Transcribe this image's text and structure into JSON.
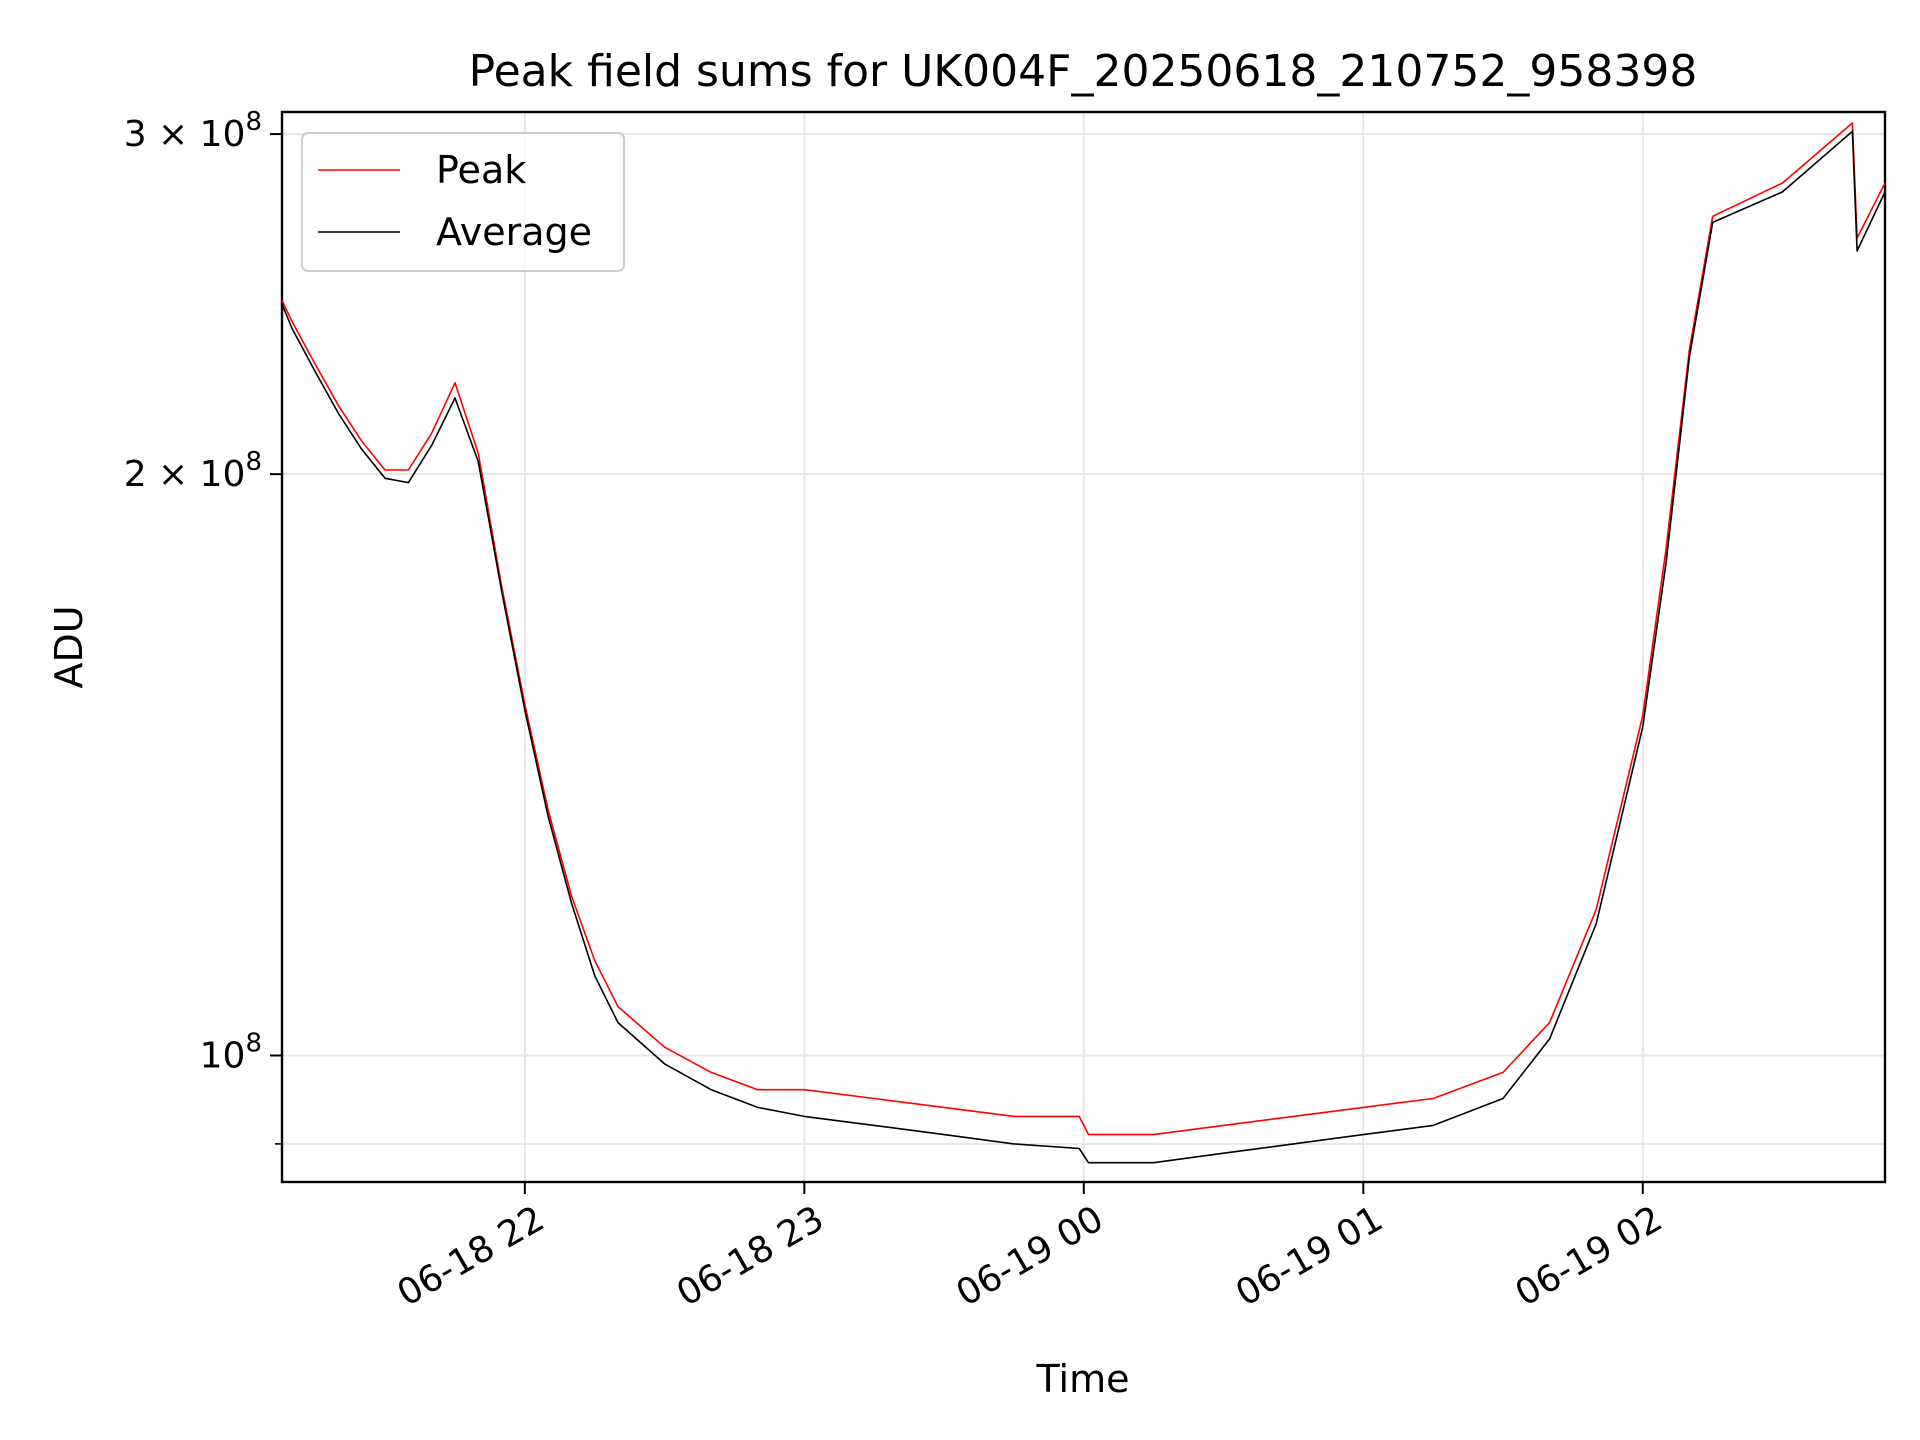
{
  "chart_data": {
    "type": "line",
    "title": "Peak field sums for UK004F_20250618_210752_958398",
    "xlabel": "Time",
    "ylabel": "ADU",
    "yscale": "log",
    "xlim": [
      "2025-06-18 21:07:52",
      "2025-06-19 02:52:00"
    ],
    "ylim": [
      86000000,
      308000000
    ],
    "grid": true,
    "legend_position": "top-left",
    "x_ticks": [
      {
        "value": "2025-06-18 22:00",
        "label": "06-18 22"
      },
      {
        "value": "2025-06-18 23:00",
        "label": "06-18 23"
      },
      {
        "value": "2025-06-19 00:00",
        "label": "06-19 00"
      },
      {
        "value": "2025-06-19 01:00",
        "label": "06-19 01"
      },
      {
        "value": "2025-06-19 02:00",
        "label": "06-19 02"
      }
    ],
    "y_ticks": [
      {
        "value": 100000000,
        "label_base": "10",
        "label_exp": "8"
      },
      {
        "value": 200000000,
        "label_base": "2 × 10",
        "label_exp": "8"
      },
      {
        "value": 300000000,
        "label_base": "3 × 10",
        "label_exp": "8"
      }
    ],
    "y_minor_ticks": [
      90000000
    ],
    "x": [
      "2025-06-18 21:07:52",
      "2025-06-18 21:10",
      "2025-06-18 21:15",
      "2025-06-18 21:20",
      "2025-06-18 21:25",
      "2025-06-18 21:30",
      "2025-06-18 21:35",
      "2025-06-18 21:40",
      "2025-06-18 21:45",
      "2025-06-18 21:50",
      "2025-06-18 21:55",
      "2025-06-18 22:00",
      "2025-06-18 22:05",
      "2025-06-18 22:10",
      "2025-06-18 22:15",
      "2025-06-18 22:20",
      "2025-06-18 22:30",
      "2025-06-18 22:40",
      "2025-06-18 22:50",
      "2025-06-18 23:00",
      "2025-06-18 23:15",
      "2025-06-18 23:30",
      "2025-06-18 23:45",
      "2025-06-18 23:59",
      "2025-06-19 00:01",
      "2025-06-19 00:15",
      "2025-06-19 00:30",
      "2025-06-19 00:45",
      "2025-06-19 01:00",
      "2025-06-19 01:15",
      "2025-06-19 01:30",
      "2025-06-19 01:40",
      "2025-06-19 01:50",
      "2025-06-19 02:00",
      "2025-06-19 02:05",
      "2025-06-19 02:10",
      "2025-06-19 02:15",
      "2025-06-19 02:30",
      "2025-06-19 02:45",
      "2025-06-19 02:46",
      "2025-06-19 02:52"
    ],
    "series": [
      {
        "name": "Peak",
        "color": "#ff0000",
        "values": [
          246000000,
          240000000,
          228000000,
          217000000,
          208000000,
          201000000,
          201000000,
          210000000,
          223000000,
          205000000,
          175000000,
          152000000,
          134000000,
          121000000,
          112000000,
          106000000,
          101000000,
          98000000,
          96000000,
          96000000,
          95000000,
          94000000,
          93000000,
          93000000,
          91000000,
          91000000,
          92000000,
          93000000,
          94000000,
          95000000,
          98000000,
          104000000,
          119000000,
          150000000,
          183000000,
          232000000,
          272000000,
          283000000,
          304000000,
          265000000,
          283000000
        ]
      },
      {
        "name": "Average",
        "color": "#000000",
        "values": [
          245000000,
          238000000,
          226000000,
          215000000,
          206000000,
          199000000,
          198000000,
          207000000,
          219000000,
          203000000,
          174000000,
          151000000,
          133000000,
          120000000,
          110000000,
          104000000,
          99000000,
          96000000,
          94000000,
          93000000,
          92000000,
          91000000,
          90000000,
          89500000,
          88000000,
          88000000,
          89000000,
          90000000,
          91000000,
          92000000,
          95000000,
          102000000,
          117000000,
          148000000,
          180000000,
          230000000,
          270000000,
          280000000,
          301000000,
          261000000,
          280000000
        ]
      }
    ]
  }
}
